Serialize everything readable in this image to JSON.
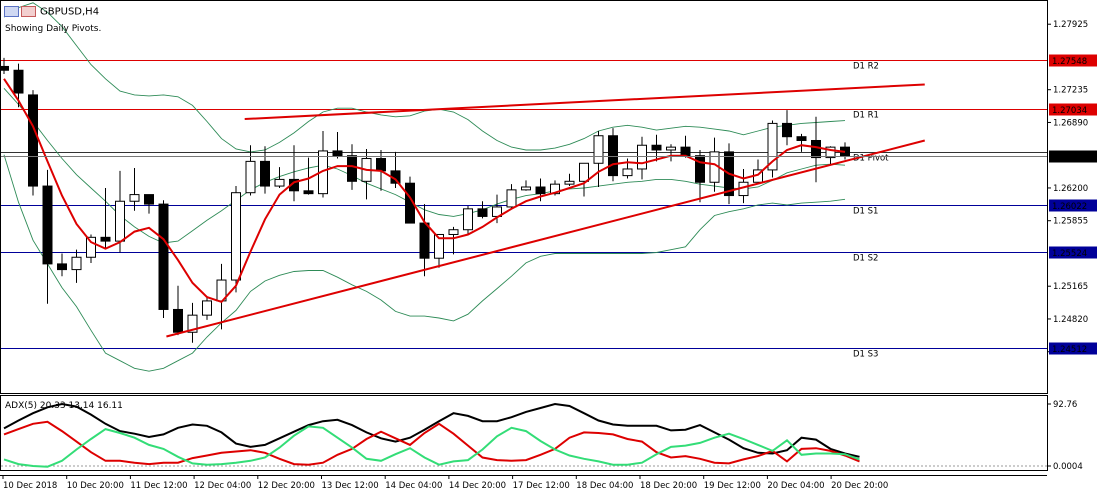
{
  "header": {
    "symbol": "GBPUSD,H4",
    "subtitle": "Showing Daily Pivots."
  },
  "indicator_label": "ADX(5) 20.33 13.14 16.11",
  "colors": {
    "background": "#ffffff",
    "frame": "#000000",
    "bull_body": "#ffffff",
    "bear_body": "#000000",
    "candle_outline": "#000000",
    "ma_line": "#dd0000",
    "bands": "#2e8b57",
    "resistance": "#dd0000",
    "support": "#000099",
    "trendline": "#dd0000",
    "current_price_tag": "#000000",
    "adx_main": "#000000",
    "adx_plus": "#dd0000",
    "adx_minus": "#33dd77"
  },
  "chart_data": [
    {
      "type": "candlestick",
      "title": "GBPUSD,H4",
      "subtitle": "Showing Daily Pivots.",
      "ylim": [
        1.2404,
        1.2818
      ],
      "y_ticks": [
        "1.27925",
        "1.27235",
        "1.26890",
        "1.26200",
        "1.25855",
        "1.25165",
        "1.24820",
        "1.24475"
      ],
      "x_ticks": [
        "10 Dec 2018",
        "10 Dec 20:00",
        "11 Dec 12:00",
        "12 Dec 04:00",
        "12 Dec 20:00",
        "13 Dec 12:00",
        "14 Dec 04:00",
        "14 Dec 20:00",
        "17 Dec 12:00",
        "18 Dec 04:00",
        "18 Dec 20:00",
        "19 Dec 12:00",
        "20 Dec 04:00",
        "20 Dec 20:00"
      ],
      "current_price": "1.26536",
      "pivots": [
        {
          "name": "D1 R2",
          "value": 1.27548,
          "tag": "1.27548",
          "kind": "resistance"
        },
        {
          "name": "D1 R1",
          "value": 1.27034,
          "tag": "1.27034",
          "kind": "resistance"
        },
        {
          "name": "D1 Pivot",
          "value": 1.2658,
          "tag": "",
          "kind": "pivot"
        },
        {
          "name": "D1 S1",
          "value": 1.26022,
          "tag": "1.26022",
          "kind": "support"
        },
        {
          "name": "D1 S2",
          "value": 1.25524,
          "tag": "1.25524",
          "kind": "support"
        },
        {
          "name": "D1 S3",
          "value": 1.24512,
          "tag": "1.24512",
          "kind": "support"
        }
      ],
      "candles": [
        [
          1.2748,
          1.2757,
          1.274,
          1.2744
        ],
        [
          1.2744,
          1.2751,
          1.2705,
          1.272
        ],
        [
          1.2718,
          1.2723,
          1.2612,
          1.2622
        ],
        [
          1.2622,
          1.2639,
          1.2498,
          1.254
        ],
        [
          1.254,
          1.2551,
          1.2527,
          1.2534
        ],
        [
          1.2534,
          1.2555,
          1.252,
          1.2547
        ],
        [
          1.2547,
          1.2571,
          1.2541,
          1.2568
        ],
        [
          1.2568,
          1.262,
          1.2557,
          1.2564
        ],
        [
          1.2564,
          1.2638,
          1.2552,
          1.2606
        ],
        [
          1.2606,
          1.2641,
          1.2596,
          1.2613
        ],
        [
          1.2613,
          1.2613,
          1.2593,
          1.2603
        ],
        [
          1.2603,
          1.2607,
          1.2483,
          1.2492
        ],
        [
          1.2492,
          1.2517,
          1.2465,
          1.2468
        ],
        [
          1.2468,
          1.2499,
          1.2457,
          1.2486
        ],
        [
          1.2486,
          1.2505,
          1.2481,
          1.2501
        ],
        [
          1.2501,
          1.254,
          1.2471,
          1.2523
        ],
        [
          1.2523,
          1.2622,
          1.251,
          1.2615
        ],
        [
          1.2615,
          1.2665,
          1.2612,
          1.2648
        ],
        [
          1.2648,
          1.2664,
          1.2614,
          1.2622
        ],
        [
          1.2622,
          1.2642,
          1.262,
          1.2629
        ],
        [
          1.2629,
          1.2665,
          1.2606,
          1.2617
        ],
        [
          1.2617,
          1.2652,
          1.2613,
          1.2614
        ],
        [
          1.2614,
          1.268,
          1.261,
          1.2659
        ],
        [
          1.2659,
          1.2679,
          1.2651,
          1.2654
        ],
        [
          1.2654,
          1.2666,
          1.2618,
          1.2627
        ],
        [
          1.2627,
          1.2661,
          1.2608,
          1.2651
        ],
        [
          1.2651,
          1.266,
          1.2617,
          1.2638
        ],
        [
          1.2638,
          1.2658,
          1.262,
          1.2625
        ],
        [
          1.2625,
          1.2632,
          1.2584,
          1.2583
        ],
        [
          1.2583,
          1.2603,
          1.2527,
          1.2546
        ],
        [
          1.2546,
          1.2568,
          1.2536,
          1.2571
        ],
        [
          1.2571,
          1.2579,
          1.255,
          1.2576
        ],
        [
          1.2576,
          1.2601,
          1.2571,
          1.2598
        ],
        [
          1.2598,
          1.2606,
          1.2588,
          1.259
        ],
        [
          1.259,
          1.2613,
          1.2583,
          1.26
        ],
        [
          1.26,
          1.2624,
          1.2598,
          1.2618
        ],
        [
          1.2618,
          1.2628,
          1.2617,
          1.2621
        ],
        [
          1.2621,
          1.263,
          1.2606,
          1.2614
        ],
        [
          1.2614,
          1.2628,
          1.2612,
          1.2624
        ],
        [
          1.2624,
          1.2635,
          1.2622,
          1.2627
        ],
        [
          1.2627,
          1.2645,
          1.2611,
          1.2646
        ],
        [
          1.2646,
          1.268,
          1.2621,
          1.2675
        ],
        [
          1.2675,
          1.2683,
          1.2627,
          1.2633
        ],
        [
          1.2633,
          1.2651,
          1.263,
          1.264
        ],
        [
          1.264,
          1.2674,
          1.2629,
          1.2665
        ],
        [
          1.2665,
          1.2676,
          1.2648,
          1.266
        ],
        [
          1.266,
          1.2666,
          1.2648,
          1.2663
        ],
        [
          1.2663,
          1.2675,
          1.2652,
          1.2654
        ],
        [
          1.2654,
          1.266,
          1.2605,
          1.2626
        ],
        [
          1.2626,
          1.2673,
          1.2616,
          1.2658
        ],
        [
          1.2658,
          1.2667,
          1.2603,
          1.2612
        ],
        [
          1.2612,
          1.264,
          1.2604,
          1.2626
        ],
        [
          1.2626,
          1.265,
          1.2628,
          1.2639
        ],
        [
          1.2639,
          1.2691,
          1.2631,
          1.2688
        ],
        [
          1.2688,
          1.2702,
          1.2665,
          1.2674
        ],
        [
          1.2674,
          1.2677,
          1.2658,
          1.267
        ],
        [
          1.267,
          1.2695,
          1.2626,
          1.2652
        ],
        [
          1.2652,
          1.2664,
          1.2645,
          1.2663
        ],
        [
          1.2663,
          1.2668,
          1.265,
          1.2654
        ]
      ],
      "moving_average": [
        1.2735,
        1.2712,
        1.2685,
        1.2648,
        1.2612,
        1.2582,
        1.2563,
        1.2556,
        1.2563,
        1.2574,
        1.2578,
        1.2566,
        1.2544,
        1.252,
        1.2505,
        1.25,
        1.2517,
        1.2553,
        1.2587,
        1.2613,
        1.2626,
        1.263,
        1.2638,
        1.2643,
        1.2643,
        1.2639,
        1.2638,
        1.2629,
        1.261,
        1.2584,
        1.2567,
        1.2567,
        1.2571,
        1.2579,
        1.2589,
        1.2598,
        1.2606,
        1.2611,
        1.2615,
        1.262,
        1.2625,
        1.2637,
        1.2645,
        1.2647,
        1.2646,
        1.265,
        1.2654,
        1.2654,
        1.2647,
        1.2645,
        1.2635,
        1.263,
        1.2634,
        1.2648,
        1.266,
        1.2665,
        1.2663,
        1.266,
        1.2658
      ],
      "band_upper": [
        1.28,
        1.281,
        1.2815,
        1.2805,
        1.279,
        1.277,
        1.275,
        1.2735,
        1.2722,
        1.2718,
        1.2717,
        1.2718,
        1.2716,
        1.2707,
        1.269,
        1.2672,
        1.2661,
        1.2658,
        1.266,
        1.2668,
        1.2678,
        1.269,
        1.27,
        1.2704,
        1.2704,
        1.27,
        1.2697,
        1.2695,
        1.2696,
        1.2701,
        1.2703,
        1.27,
        1.2692,
        1.268,
        1.267,
        1.2663,
        1.266,
        1.266,
        1.2662,
        1.2666,
        1.2672,
        1.268,
        1.2684,
        1.2686,
        1.2684,
        1.2681,
        1.2683,
        1.2685,
        1.2684,
        1.2682,
        1.268,
        1.2676,
        1.268,
        1.2684,
        1.2686,
        1.2688,
        1.2689,
        1.269,
        1.2691
      ],
      "band_mid": [
        1.2725,
        1.2708,
        1.269,
        1.267,
        1.2651,
        1.2634,
        1.262,
        1.2606,
        1.2591,
        1.2579,
        1.2569,
        1.2562,
        1.2564,
        1.2575,
        1.2586,
        1.2596,
        1.2607,
        1.2618,
        1.2626,
        1.2632,
        1.2637,
        1.2641,
        1.2644,
        1.264,
        1.2633,
        1.2625,
        1.2619,
        1.2613,
        1.2605,
        1.2597,
        1.2592,
        1.259,
        1.2593,
        1.2597,
        1.2603,
        1.2608,
        1.2612,
        1.2614,
        1.2617,
        1.2619,
        1.262,
        1.2622,
        1.2624,
        1.2626,
        1.2627,
        1.2629,
        1.2629,
        1.2627,
        1.2624,
        1.2622,
        1.262,
        1.2619,
        1.2621,
        1.2628,
        1.2636,
        1.264,
        1.2644,
        1.2645,
        1.2644
      ],
      "band_lower": [
        1.2655,
        1.2605,
        1.2565,
        1.254,
        1.2515,
        1.2495,
        1.247,
        1.2446,
        1.2438,
        1.243,
        1.2427,
        1.243,
        1.2438,
        1.2446,
        1.2463,
        1.2478,
        1.2491,
        1.2511,
        1.2522,
        1.2528,
        1.2532,
        1.2533,
        1.2533,
        1.2526,
        1.2518,
        1.2511,
        1.2502,
        1.249,
        1.2485,
        1.2485,
        1.2483,
        1.248,
        1.2487,
        1.2501,
        1.2514,
        1.2527,
        1.2541,
        1.2548,
        1.2551,
        1.2551,
        1.2551,
        1.2551,
        1.2551,
        1.2551,
        1.2551,
        1.2552,
        1.2555,
        1.2558,
        1.2576,
        1.2591,
        1.2595,
        1.2598,
        1.2602,
        1.2604,
        1.2602,
        1.2604,
        1.2605,
        1.2606,
        1.2608
      ],
      "trendlines": [
        {
          "from": [
            11.2,
            1.24635
          ],
          "to": [
            63.5,
            1.267
          ]
        },
        {
          "from": [
            16.6,
            1.26926
          ],
          "to": [
            63.5,
            1.2729
          ]
        }
      ]
    },
    {
      "type": "line",
      "title": "ADX(5) 20.33 13.14 16.11",
      "ylim": [
        0,
        100
      ],
      "y_ticks": [
        "92.76",
        "0.0004"
      ],
      "series": [
        {
          "name": "ADX",
          "color": "#000000",
          "values": [
            63,
            75,
            86,
            95,
            100,
            96,
            84,
            70,
            59,
            55,
            50,
            54,
            64,
            69,
            67,
            57,
            40,
            35,
            38,
            48,
            58,
            68,
            74,
            76,
            68,
            57,
            48,
            43,
            49,
            61,
            74,
            86,
            82,
            74,
            74,
            80,
            88,
            94,
            100,
            97,
            86,
            75,
            69,
            67,
            67,
            67,
            60,
            61,
            68,
            57,
            46,
            33,
            26,
            25,
            30,
            49,
            46,
            32,
            25,
            20
          ]
        },
        {
          "name": "+DI",
          "values": [
            54,
            62,
            70,
            73,
            59,
            43,
            27,
            14,
            14,
            11,
            9,
            11,
            11,
            18,
            22,
            26,
            28,
            30,
            26,
            17,
            9,
            8,
            11,
            23,
            32,
            47,
            58,
            48,
            38,
            56,
            70,
            55,
            37,
            19,
            15,
            14,
            15,
            23,
            32,
            49,
            57,
            56,
            54,
            47,
            43,
            27,
            19,
            21,
            17,
            11,
            10,
            16,
            21,
            29,
            13,
            32,
            33,
            29,
            22,
            13
          ],
          "color": "#dd0000"
        },
        {
          "name": "-DI",
          "values": [
            16,
            9,
            6,
            5,
            14,
            31,
            47,
            62,
            56,
            49,
            38,
            32,
            20,
            10,
            8,
            9,
            11,
            14,
            19,
            34,
            52,
            66,
            64,
            49,
            34,
            17,
            14,
            24,
            33,
            19,
            8,
            13,
            15,
            31,
            51,
            64,
            59,
            44,
            31,
            22,
            17,
            13,
            8,
            8,
            11,
            24,
            35,
            37,
            41,
            49,
            55,
            47,
            38,
            29,
            45,
            23,
            25,
            25,
            24,
            16
          ],
          "color": "#33dd77"
        }
      ]
    }
  ]
}
